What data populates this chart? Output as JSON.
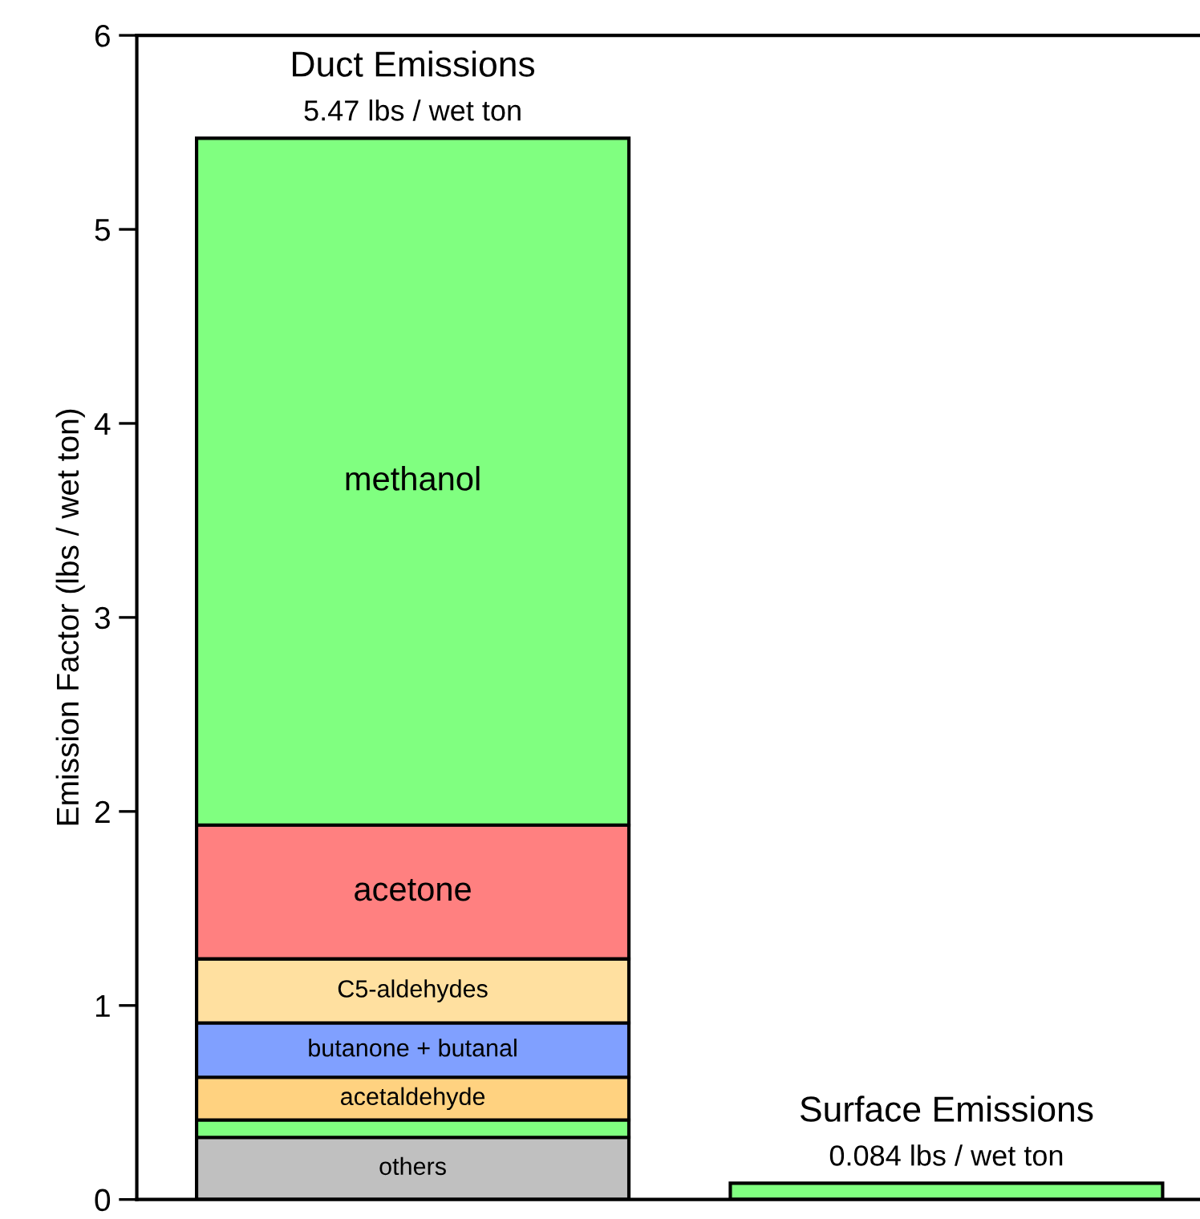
{
  "chart_data": {
    "type": "bar",
    "stacked": true,
    "ylabel": "Emission Factor (lbs / wet ton)",
    "categories": [
      "Duct Emissions",
      "Surface Emissions"
    ],
    "totals": [
      "5.47 lbs / wet ton",
      "0.084 lbs / wet ton"
    ],
    "series": [
      {
        "name": "others",
        "color": "#c0c0c0",
        "values": [
          0.32,
          null
        ]
      },
      {
        "color": "#80ff80",
        "values": [
          0.09,
          null
        ]
      },
      {
        "name": "acetaldehyde",
        "color": "#ffd280",
        "values": [
          0.22,
          null
        ]
      },
      {
        "name": "butanone + butanal",
        "color": "#80a0ff",
        "values": [
          0.28,
          null
        ]
      },
      {
        "name": "C5-aldehydes",
        "color": "#ffe0a0",
        "values": [
          0.33,
          null
        ]
      },
      {
        "name": "acetone",
        "color": "#ff8080",
        "values": [
          0.69,
          null
        ]
      },
      {
        "name": "methanol",
        "color": "#80ff80",
        "values": [
          3.54,
          0.084
        ]
      }
    ],
    "ylim": [
      0,
      6
    ],
    "yticks": [
      0,
      1,
      2,
      3,
      4,
      5,
      6
    ],
    "grid": false,
    "legend": false,
    "tick_labels": "y"
  }
}
